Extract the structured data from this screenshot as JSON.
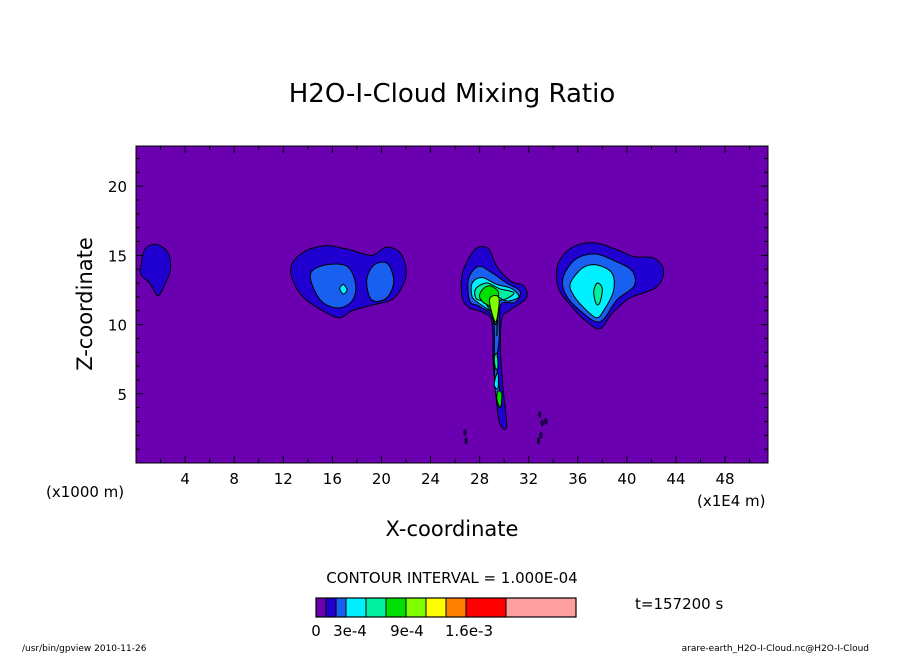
{
  "chart_data": {
    "type": "heatmap",
    "title": "H2O-I-Cloud Mixing Ratio",
    "xlabel": "X-coordinate",
    "ylabel": "Z-coordinate",
    "x_unit_left": "(x1000 m)",
    "x_unit_right": "(x1E4 m)",
    "xlim": [
      0,
      51.5
    ],
    "ylim": [
      0,
      22.9
    ],
    "x_ticks": [
      4,
      8,
      12,
      16,
      20,
      24,
      28,
      32,
      36,
      40,
      44,
      48
    ],
    "y_ticks": [
      5,
      10,
      15,
      20
    ],
    "background_color": "#6a00b0",
    "contour_interval": "CONTOUR INTERVAL = 1.000E-04",
    "time_label": "t=157200 s",
    "colorbar": {
      "colors": [
        "#6a00b0",
        "#2000d0",
        "#1a60f0",
        "#00f0ff",
        "#00f0a0",
        "#00e000",
        "#80ff00",
        "#ffff00",
        "#ff8000",
        "#ff0000",
        "#ffa0a0"
      ],
      "tick_labels": [
        "0",
        "3e-4",
        "9e-4",
        "1.6e-3"
      ],
      "tick_values": [
        0,
        0.0003,
        0.0009,
        0.0016
      ]
    },
    "levels": [
      {
        "value": 0.0001,
        "color": "#2000d0"
      },
      {
        "value": 0.0002,
        "color": "#1a60f0"
      },
      {
        "value": 0.0003,
        "color": "#00f0ff"
      },
      {
        "value": 0.0004,
        "color": "#00f0a0"
      },
      {
        "value": 0.0005,
        "color": "#00e000"
      },
      {
        "value": 0.0006,
        "color": "#80ff00"
      }
    ],
    "regions": [
      {
        "level": 0,
        "points": [
          [
            0.4,
            14.2
          ],
          [
            0.7,
            15.4
          ],
          [
            1.6,
            15.8
          ],
          [
            2.6,
            15.2
          ],
          [
            2.8,
            14.0
          ],
          [
            2.4,
            13.0
          ],
          [
            1.8,
            12.1
          ],
          [
            1.1,
            13.0
          ],
          [
            0.4,
            13.6
          ]
        ]
      },
      {
        "level": 0,
        "points": [
          [
            12.6,
            14.0
          ],
          [
            13.6,
            15.2
          ],
          [
            15.4,
            15.7
          ],
          [
            17.4,
            15.4
          ],
          [
            19.2,
            15.0
          ],
          [
            20.4,
            15.6
          ],
          [
            21.6,
            15.1
          ],
          [
            22.0,
            13.5
          ],
          [
            21.0,
            11.9
          ],
          [
            19.2,
            11.4
          ],
          [
            17.6,
            11.0
          ],
          [
            16.6,
            10.5
          ],
          [
            15.2,
            11.0
          ],
          [
            13.4,
            12.2
          ]
        ]
      },
      {
        "level": 1,
        "points": [
          [
            14.2,
            13.6
          ],
          [
            15.4,
            14.3
          ],
          [
            17.2,
            14.2
          ],
          [
            17.9,
            12.9
          ],
          [
            17.6,
            11.7
          ],
          [
            16.4,
            11.2
          ],
          [
            15.0,
            11.8
          ]
        ]
      },
      {
        "level": 1,
        "points": [
          [
            18.8,
            13.2
          ],
          [
            19.4,
            14.3
          ],
          [
            20.5,
            14.4
          ],
          [
            21.0,
            13.1
          ],
          [
            20.4,
            11.9
          ],
          [
            19.2,
            11.8
          ]
        ]
      },
      {
        "level": 2,
        "points": [
          [
            16.6,
            12.6
          ],
          [
            16.9,
            12.9
          ],
          [
            17.2,
            12.5
          ],
          [
            16.9,
            12.2
          ]
        ]
      },
      {
        "level": 0,
        "points": [
          [
            26.6,
            13.7
          ],
          [
            27.6,
            15.4
          ],
          [
            28.7,
            15.5
          ],
          [
            29.4,
            14.2
          ],
          [
            30.6,
            13.1
          ],
          [
            31.6,
            12.8
          ],
          [
            31.8,
            11.9
          ],
          [
            30.4,
            11.0
          ],
          [
            29.8,
            10.4
          ],
          [
            29.7,
            8.0
          ],
          [
            29.9,
            5.5
          ],
          [
            30.2,
            2.6
          ],
          [
            29.6,
            3.0
          ],
          [
            29.3,
            5.2
          ],
          [
            29.1,
            7.4
          ],
          [
            29.0,
            10.2
          ],
          [
            28.2,
            10.9
          ],
          [
            27.2,
            11.2
          ],
          [
            26.6,
            11.9
          ]
        ]
      },
      {
        "level": 1,
        "points": [
          [
            27.1,
            13.3
          ],
          [
            27.9,
            14.2
          ],
          [
            28.9,
            13.8
          ],
          [
            30.2,
            13.0
          ],
          [
            31.3,
            12.4
          ],
          [
            30.9,
            11.6
          ],
          [
            29.7,
            11.4
          ],
          [
            29.6,
            9.0
          ],
          [
            29.4,
            7.0
          ],
          [
            29.8,
            4.2
          ],
          [
            29.3,
            5.0
          ],
          [
            29.2,
            7.4
          ],
          [
            29.1,
            10.4
          ],
          [
            28.0,
            11.3
          ],
          [
            27.2,
            11.7
          ]
        ]
      },
      {
        "level": 2,
        "points": [
          [
            27.4,
            13.0
          ],
          [
            28.2,
            13.4
          ],
          [
            29.4,
            12.9
          ],
          [
            30.6,
            12.6
          ],
          [
            31.2,
            12.0
          ],
          [
            30.4,
            11.7
          ],
          [
            29.6,
            11.6
          ],
          [
            29.4,
            9.2
          ],
          [
            29.3,
            10.6
          ],
          [
            28.0,
            11.5
          ],
          [
            27.4,
            12.0
          ]
        ]
      },
      {
        "level": 3,
        "points": [
          [
            27.7,
            12.6
          ],
          [
            28.6,
            13.0
          ],
          [
            29.6,
            12.6
          ],
          [
            30.8,
            12.3
          ],
          [
            30.0,
            11.8
          ],
          [
            29.5,
            11.9
          ],
          [
            29.3,
            10.6
          ],
          [
            28.4,
            11.6
          ],
          [
            27.7,
            11.9
          ]
        ]
      },
      {
        "level": 4,
        "points": [
          [
            28.2,
            12.5
          ],
          [
            28.8,
            12.8
          ],
          [
            29.5,
            12.4
          ],
          [
            29.5,
            11.8
          ],
          [
            29.3,
            10.0
          ],
          [
            28.9,
            11.2
          ],
          [
            28.3,
            11.6
          ],
          [
            28.0,
            12.0
          ]
        ]
      },
      {
        "level": 5,
        "points": [
          [
            28.8,
            11.7
          ],
          [
            29.2,
            12.1
          ],
          [
            29.6,
            11.8
          ],
          [
            29.3,
            10.2
          ]
        ]
      },
      {
        "level": 3,
        "points": [
          [
            29.2,
            7.6
          ],
          [
            29.4,
            7.9
          ],
          [
            29.5,
            7.0
          ],
          [
            29.3,
            6.8
          ]
        ]
      },
      {
        "level": 4,
        "points": [
          [
            29.5,
            5.2
          ],
          [
            29.8,
            5.0
          ],
          [
            29.7,
            4.0
          ],
          [
            29.4,
            4.6
          ]
        ]
      },
      {
        "level": 2,
        "points": [
          [
            29.3,
            6.2
          ],
          [
            29.5,
            6.5
          ],
          [
            29.5,
            5.4
          ],
          [
            29.2,
            5.6
          ]
        ]
      },
      {
        "level": 0,
        "points": [
          [
            34.4,
            14.4
          ],
          [
            35.6,
            15.6
          ],
          [
            37.4,
            15.9
          ],
          [
            39.2,
            15.4
          ],
          [
            40.6,
            14.9
          ],
          [
            42.2,
            14.8
          ],
          [
            43.0,
            13.9
          ],
          [
            42.4,
            12.7
          ],
          [
            40.2,
            11.9
          ],
          [
            38.8,
            10.8
          ],
          [
            37.8,
            9.7
          ],
          [
            36.6,
            10.3
          ],
          [
            35.4,
            11.4
          ],
          [
            34.4,
            12.7
          ]
        ]
      },
      {
        "level": 1,
        "points": [
          [
            34.8,
            13.4
          ],
          [
            35.8,
            14.7
          ],
          [
            37.4,
            15.1
          ],
          [
            39.0,
            14.6
          ],
          [
            40.4,
            13.9
          ],
          [
            40.6,
            12.8
          ],
          [
            39.2,
            11.8
          ],
          [
            37.8,
            10.2
          ],
          [
            36.2,
            11.0
          ],
          [
            35.0,
            12.2
          ]
        ]
      },
      {
        "level": 2,
        "points": [
          [
            35.4,
            13.0
          ],
          [
            36.4,
            14.1
          ],
          [
            37.6,
            14.3
          ],
          [
            38.8,
            13.7
          ],
          [
            38.9,
            12.4
          ],
          [
            38.1,
            11.0
          ],
          [
            37.5,
            10.5
          ],
          [
            36.4,
            11.3
          ],
          [
            35.6,
            12.2
          ]
        ]
      },
      {
        "level": 3,
        "points": [
          [
            37.3,
            12.4
          ],
          [
            37.6,
            13.0
          ],
          [
            38.0,
            12.6
          ],
          [
            37.8,
            11.6
          ],
          [
            37.5,
            11.5
          ]
        ]
      }
    ],
    "specks": [
      [
        26.8,
        2.2
      ],
      [
        26.9,
        1.6
      ],
      [
        32.9,
        3.5
      ],
      [
        33.1,
        2.9
      ],
      [
        33.0,
        2.0
      ],
      [
        32.8,
        1.6
      ],
      [
        33.4,
        3.0
      ]
    ]
  },
  "footer": {
    "left": "/usr/bin/gpview   2010-11-26",
    "right": "arare-earth_H2O-I-Cloud.nc@H2O-I-Cloud"
  }
}
